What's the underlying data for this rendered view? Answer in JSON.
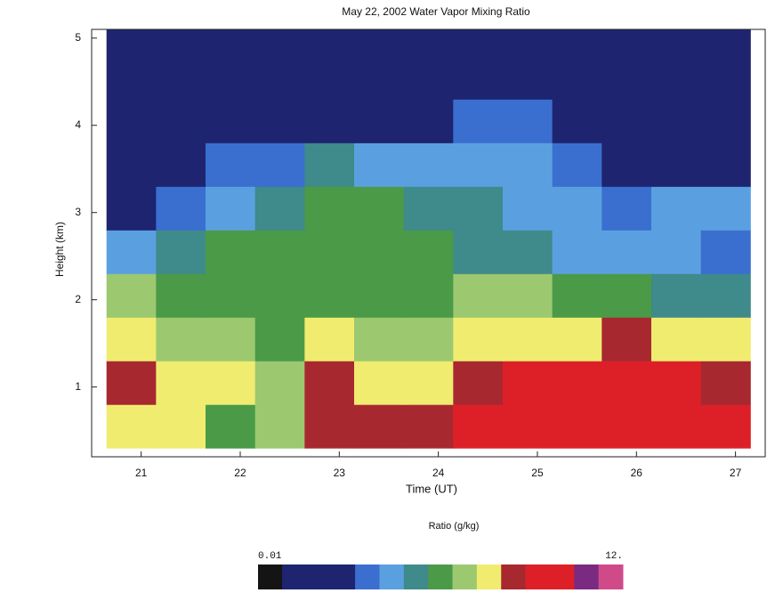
{
  "chart_data": {
    "type": "heatmap",
    "title": "May 22, 2002 Water Vapor Mixing Ratio",
    "x_label": "Time (UT)",
    "y_label": "Height (km)",
    "xlim": [
      20.5,
      27.3
    ],
    "ylim": [
      0.2,
      5.1
    ],
    "xticks": [
      21,
      22,
      23,
      24,
      25,
      26,
      27
    ],
    "yticks": [
      1,
      2,
      3,
      4,
      5
    ],
    "x": [
      20.9,
      21.4,
      21.9,
      22.4,
      22.9,
      23.4,
      23.9,
      24.4,
      24.9,
      25.4,
      25.9,
      26.4,
      26.9
    ],
    "y": [
      0.55,
      1.05,
      1.55,
      2.05,
      2.55,
      3.05,
      3.55,
      4.05,
      4.55,
      5.05
    ],
    "z": [
      [
        7.6,
        7.6,
        6.4,
        7,
        8.6,
        8.4,
        8.6,
        9.2,
        9.6,
        9.8,
        9.8,
        9.8,
        9.8
      ],
      [
        8.4,
        7.8,
        7.4,
        6.8,
        8.4,
        7.6,
        7.8,
        8.6,
        9.6,
        9.6,
        9.8,
        9.6,
        8.6
      ],
      [
        7.6,
        7,
        6.6,
        6.2,
        7.6,
        7,
        6.8,
        7.6,
        7.8,
        7.6,
        8.6,
        7.8,
        7.8
      ],
      [
        6.8,
        6.2,
        6,
        6,
        6.2,
        6.4,
        6.2,
        6.8,
        6.6,
        6.2,
        6,
        5.6,
        5.4
      ],
      [
        4.4,
        5.2,
        5.8,
        5.8,
        6,
        6,
        5.8,
        5.4,
        5.2,
        4.4,
        4.4,
        4.4,
        3.8
      ],
      [
        2,
        3.8,
        4.6,
        5.2,
        5.8,
        5.8,
        5.2,
        5,
        4.6,
        4.2,
        3.4,
        4.2,
        4.4
      ],
      [
        2,
        2.4,
        3.4,
        3.6,
        5,
        4.4,
        4.2,
        4.4,
        4.4,
        3.6,
        2.4,
        2.4,
        2.6
      ],
      [
        2,
        1.6,
        2,
        2,
        2.4,
        2.2,
        2.6,
        3.6,
        3.6,
        2.4,
        2,
        2,
        2
      ],
      [
        1,
        1.2,
        2,
        2,
        2,
        2,
        2,
        2,
        2,
        2,
        2,
        2,
        2
      ],
      [
        1,
        1,
        1.5,
        1,
        1,
        1,
        1,
        2,
        2,
        2,
        2,
        2,
        2
      ]
    ],
    "colorbar": {
      "label": "Ratio (g/kg)",
      "levels": [
        0.01,
        0.8,
        3.2,
        4,
        4.8,
        5.6,
        6.4,
        7.2,
        8,
        8.8,
        10.4,
        11.2,
        12
      ],
      "colors": [
        "#141414",
        "#1e2470",
        "#3a6fd0",
        "#5aa0e0",
        "#3f8a8a",
        "#4a9a48",
        "#9cc870",
        "#f0ec70",
        "#a82830",
        "#dd2028",
        "#7a2a80",
        "#d04a8a"
      ],
      "ticks": [
        0.01,
        {
          "value": 12,
          "label": "12."
        }
      ]
    }
  }
}
